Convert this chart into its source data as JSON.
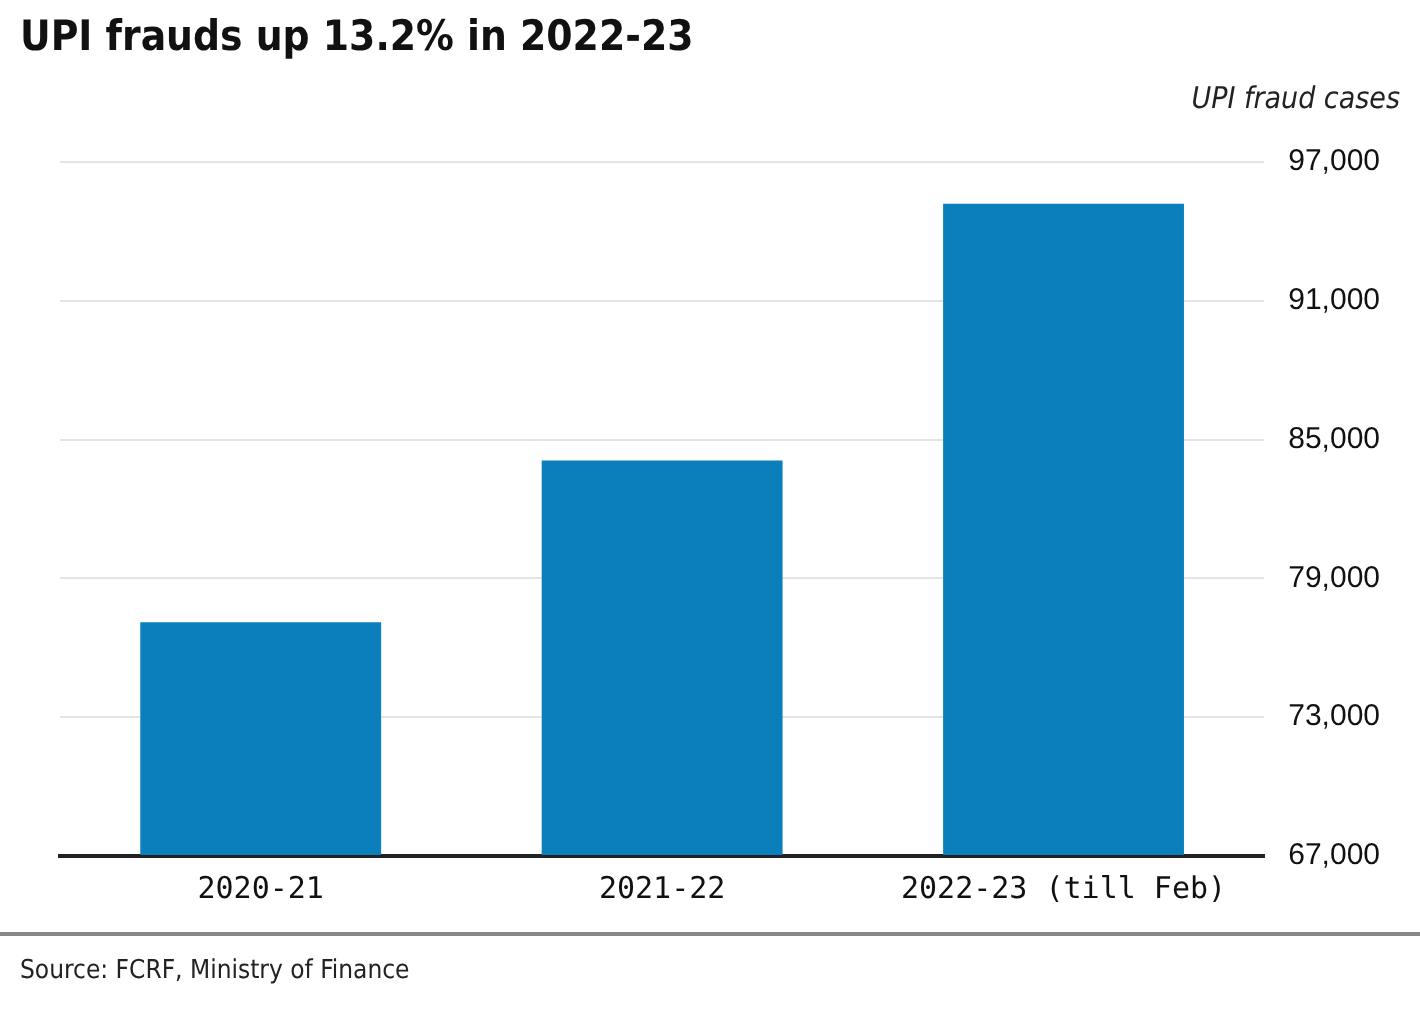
{
  "chart_data": {
    "type": "bar",
    "title": "UPI frauds up 13.2% in 2022-23",
    "ylabel": "UPI fraud cases",
    "categories": [
      "2020-21",
      "2021-22",
      "2022-23 (till Feb)"
    ],
    "values": [
      77100,
      84100,
      95200
    ],
    "color": "#0a7fbb",
    "ylim": [
      67000,
      97000
    ],
    "yticks": [
      {
        "value": 67000,
        "label": "67,000"
      },
      {
        "value": 73000,
        "label": "73,000"
      },
      {
        "value": 79000,
        "label": "79,000"
      },
      {
        "value": 85000,
        "label": "85,000"
      },
      {
        "value": 91000,
        "label": "91,000"
      },
      {
        "value": 97000,
        "label": "97,000"
      }
    ],
    "grid": "y",
    "legend": false,
    "annotations": [
      "Source: FCRF, Ministry of Finance"
    ]
  }
}
